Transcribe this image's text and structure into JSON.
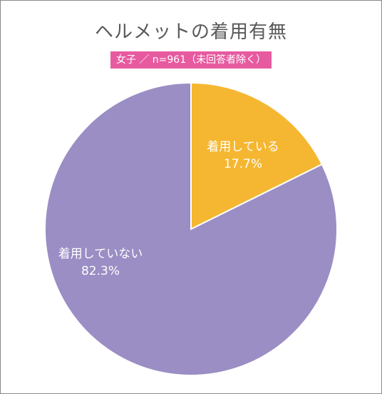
{
  "chart_data": {
    "type": "pie",
    "title": "ヘルメットの着用有無",
    "subtitle": "女子 ／ n=961（未回答者除く）",
    "categories": [
      "着用している",
      "着用していない"
    ],
    "values": [
      17.7,
      82.3
    ],
    "value_labels": [
      "17.7%",
      "82.3%"
    ],
    "colors": [
      "#f5b731",
      "#9a8ec4"
    ],
    "start_angle_deg": 0,
    "direction": "clockwise",
    "legend": "none"
  }
}
